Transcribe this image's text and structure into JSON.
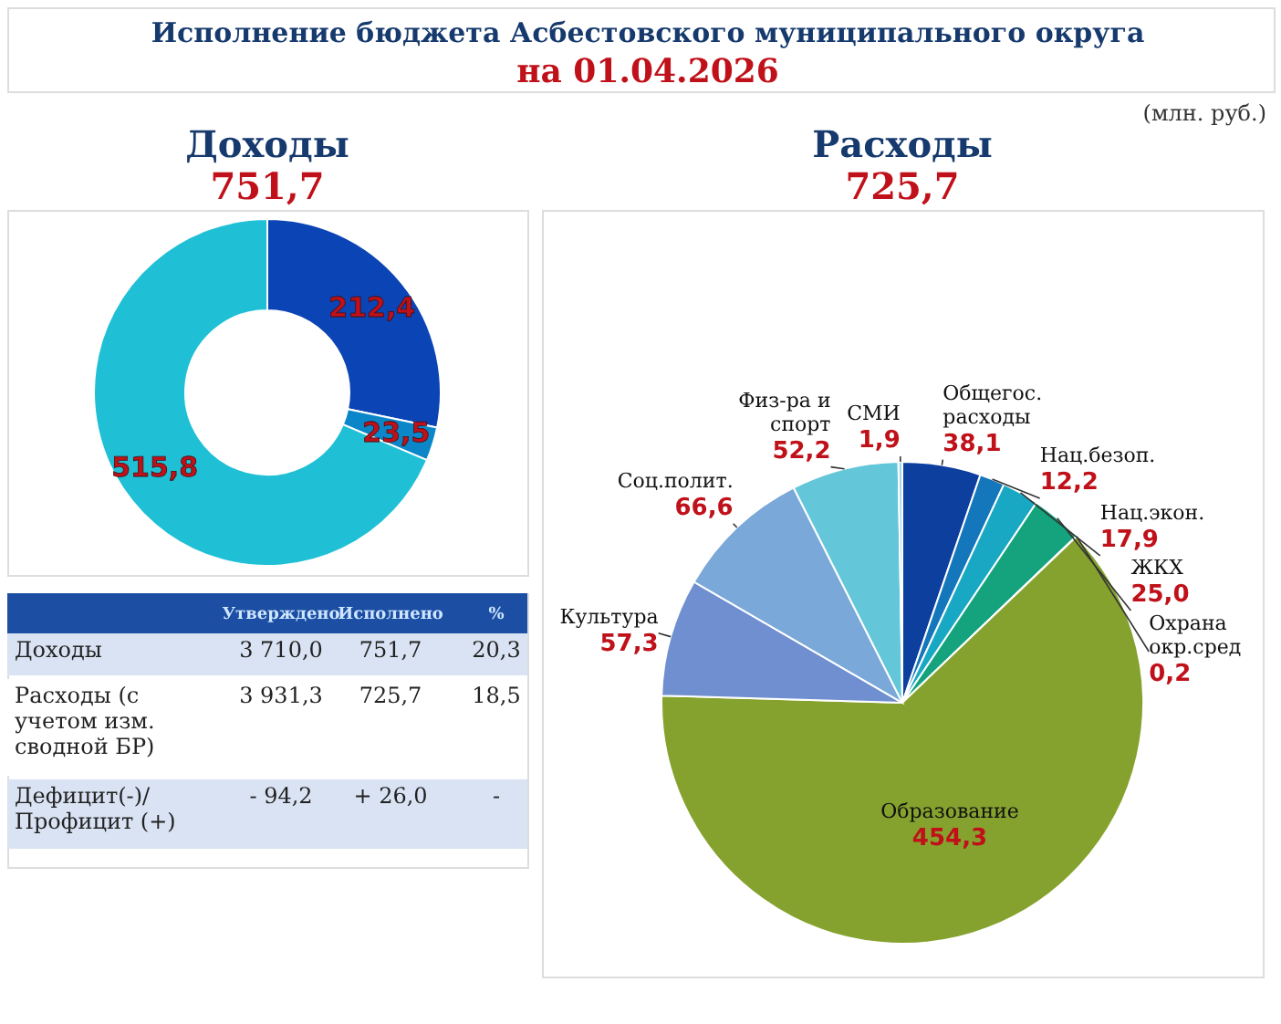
{
  "chart_data": [
    {
      "type": "other",
      "title": "Исполнение бюджета Асбестовского муниципального округа",
      "subtitle": "на 01.04.2026",
      "annotations": [
        "(млн. руб.)"
      ]
    },
    {
      "type": "donut",
      "title": "Доходы",
      "subtitle": "751,7",
      "categories": [
        null,
        null,
        null
      ],
      "values": [
        212.4,
        23.5,
        515.8
      ],
      "colors": [
        "#0b44b5",
        "#0b86c9",
        "#1fc0d6"
      ],
      "value_labels": [
        "212,4",
        "23,5",
        "515,8"
      ]
    },
    {
      "type": "pie",
      "title": "Расходы",
      "subtitle": "725,7",
      "categories": [
        "Общегос.\nрасходы",
        "Нац.безоп.",
        "Нац.экон.",
        "ЖКХ",
        "Охрана\nокр.сред",
        "Образование",
        "Культура",
        "Соц.полит.",
        "Физ-ра и\nспорт",
        "СМИ"
      ],
      "values": [
        38.1,
        12.2,
        17.9,
        25.0,
        0.2,
        454.3,
        57.3,
        66.6,
        52.2,
        1.9
      ],
      "colors": [
        "#0c3f9e",
        "#1577bb",
        "#19a8c4",
        "#14a37c",
        "#4aa84a",
        "#86a22e",
        "#6f8fd0",
        "#7aa8d9",
        "#63c7d9",
        "#a3d6e8"
      ],
      "value_labels": [
        "38,1",
        "12,2",
        "17,9",
        "25,0",
        "0,2",
        "454,3",
        "57,3",
        "66,6",
        "52,2",
        "1,9"
      ]
    },
    {
      "type": "other",
      "categories": [
        "Утверждено",
        "Исполнено",
        "%"
      ],
      "y_categories": [
        "Доходы",
        "Расходы (с\nучетом изм.\nсводной БР)",
        "Дефицит(-)/\nПрофицит (+)"
      ],
      "cell_labels": [
        [
          "3 710,0",
          "751,7",
          "20,3"
        ],
        [
          "3 931,3",
          "725,7",
          "18,5"
        ],
        [
          "-  94,2",
          "+ 26,0",
          "-"
        ]
      ]
    }
  ]
}
